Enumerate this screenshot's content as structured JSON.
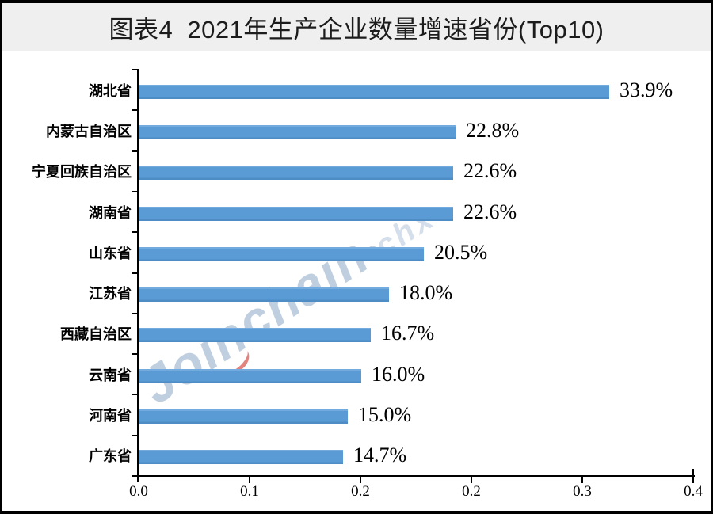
{
  "window": {
    "background": "#ffffff",
    "frame_border_color": "#000000",
    "title_band_background": "#efefef"
  },
  "header": {
    "title": "图表4  2021年生产企业数量增速省份(Top10)",
    "title_color": "#1c1c1c"
  },
  "watermark": {
    "text": "Joinchain",
    "reg_mark": "®",
    "suffix": "chx",
    "color": "#b5c7db",
    "swoosh_color": "#d64e4a"
  },
  "chart_data": {
    "type": "bar",
    "orientation": "horizontal",
    "title": "图表4  2021年生产企业数量增速省份(Top10)",
    "categories": [
      "湖北省",
      "内蒙古自治区",
      "宁夏回族自治区",
      "湖南省",
      "山东省",
      "江苏省",
      "西藏自治区",
      "云南省",
      "河南省",
      "广东省"
    ],
    "values": [
      0.339,
      0.228,
      0.226,
      0.226,
      0.205,
      0.18,
      0.167,
      0.16,
      0.15,
      0.147
    ],
    "value_labels": [
      "33.9%",
      "22.8%",
      "22.6%",
      "22.6%",
      "20.5%",
      "18.0%",
      "16.7%",
      "16.0%",
      "15.0%",
      "14.7%"
    ],
    "x_tick_labels": [
      "0.0",
      "0.1",
      "0.2",
      "0.2",
      "0.3",
      "0.4"
    ],
    "x_tick_values": [
      0.0,
      0.08,
      0.16,
      0.24,
      0.32,
      0.4
    ],
    "xlim": [
      0.0,
      0.4
    ],
    "xlabel": "",
    "ylabel": "",
    "bar_color": "#5b9bd5",
    "axis_color": "#000000",
    "label_color": "#000000",
    "grid": false,
    "legend": false
  }
}
